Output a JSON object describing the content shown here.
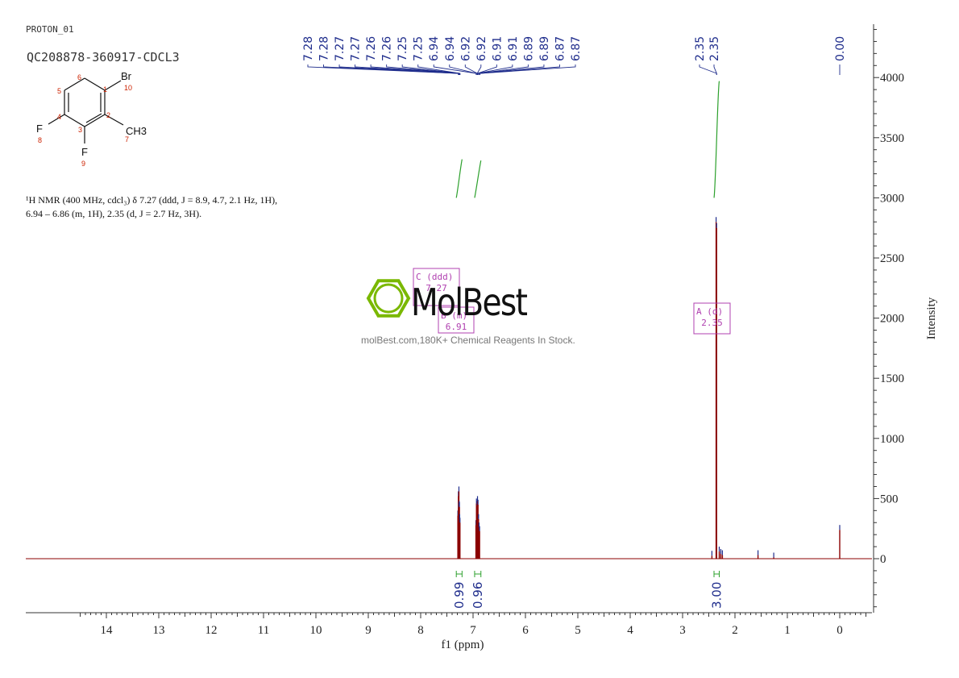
{
  "header": {
    "experiment": "PROTON_01",
    "sample": "QC208878-360917-CDCL3"
  },
  "structure": {
    "atoms": {
      "br": "Br",
      "f1": "F",
      "f2": "F",
      "ch3": "CH3"
    },
    "numbers": [
      "1",
      "2",
      "3",
      "4",
      "5",
      "6",
      "7",
      "8",
      "9",
      "10"
    ]
  },
  "nmr_text": {
    "line1": "¹H NMR (400 MHz, cdcl₃) δ 7.27 (ddd, J = 8.9, 4.7, 2.1 Hz, 1H),",
    "line2": "6.94 – 6.86 (m, 1H), 2.35 (d, J = 2.7 Hz, 3H)."
  },
  "watermark": {
    "brand": "MolBest",
    "subtitle": "molBest.com,180K+ Chemical Reagents In Stock."
  },
  "chart_data": {
    "type": "line",
    "xlabel": "f1 (ppm)",
    "ylabel": "Intensity",
    "xlim": [
      14.5,
      -0.5
    ],
    "ylim": [
      -450,
      4450
    ],
    "x_ticks": [
      "14",
      "13",
      "12",
      "11",
      "10",
      "9",
      "8",
      "7",
      "6",
      "5",
      "4",
      "3",
      "2",
      "1",
      "0"
    ],
    "y_ticks": [
      "0",
      "500",
      "1000",
      "1500",
      "2000",
      "2500",
      "3000",
      "3500",
      "4000"
    ],
    "peak_labels_group1": [
      "7.28",
      "7.28",
      "7.27",
      "7.27",
      "7.26",
      "7.26",
      "7.25",
      "7.25",
      "6.94",
      "6.94",
      "6.92",
      "6.92",
      "6.91",
      "6.91",
      "6.89",
      "6.89",
      "6.87",
      "6.87"
    ],
    "peak_labels_group1_ppm": [
      7.28,
      7.28,
      7.27,
      7.27,
      7.26,
      7.26,
      7.25,
      7.25,
      6.94,
      6.94,
      6.92,
      6.92,
      6.91,
      6.91,
      6.89,
      6.89,
      6.87,
      6.87
    ],
    "peak_labels_group2": [
      "2.35",
      "2.35"
    ],
    "peak_labels_group2_ppm": [
      2.35,
      2.35
    ],
    "peak_labels_group3": [
      "0.00"
    ],
    "peak_labels_group3_ppm": [
      0.0
    ],
    "peaks": [
      {
        "ppm": 7.29,
        "height": 360
      },
      {
        "ppm": 7.28,
        "height": 520
      },
      {
        "ppm": 7.275,
        "height": 420
      },
      {
        "ppm": 7.27,
        "height": 560
      },
      {
        "ppm": 7.265,
        "height": 440
      },
      {
        "ppm": 7.26,
        "height": 430
      },
      {
        "ppm": 7.255,
        "height": 330
      },
      {
        "ppm": 7.25,
        "height": 300
      },
      {
        "ppm": 6.945,
        "height": 280
      },
      {
        "ppm": 6.935,
        "height": 460
      },
      {
        "ppm": 6.925,
        "height": 440
      },
      {
        "ppm": 6.915,
        "height": 480
      },
      {
        "ppm": 6.905,
        "height": 450
      },
      {
        "ppm": 6.895,
        "height": 330
      },
      {
        "ppm": 6.885,
        "height": 260
      },
      {
        "ppm": 6.875,
        "height": 230
      },
      {
        "ppm": 2.36,
        "height": 2800
      },
      {
        "ppm": 2.35,
        "height": 2750
      },
      {
        "ppm": 2.3,
        "height": 60
      },
      {
        "ppm": 2.27,
        "height": 40
      },
      {
        "ppm": 2.24,
        "height": 30
      },
      {
        "ppm": 2.44,
        "height": 25
      },
      {
        "ppm": 1.56,
        "height": 30
      },
      {
        "ppm": 1.26,
        "height": 10
      },
      {
        "ppm": 0.0,
        "height": 240
      }
    ],
    "integrals": [
      {
        "from": 7.32,
        "to": 7.21,
        "value": "0.99",
        "curve_bottom": 3000,
        "curve_top": 3320
      },
      {
        "from": 6.97,
        "to": 6.85,
        "value": "0.96",
        "curve_bottom": 3000,
        "curve_top": 3310
      },
      {
        "from": 2.4,
        "to": 2.3,
        "value": "3.00",
        "curve_bottom": 3000,
        "curve_top": 3970
      }
    ],
    "multiplets": [
      {
        "label": "C (ddd)",
        "shift": "7.27"
      },
      {
        "label": "B (m)",
        "shift": "6.91"
      },
      {
        "label": "A (d)",
        "shift": "2.35"
      }
    ],
    "colors": {
      "spectrum": "#8b0000",
      "integral": "#2ca02c",
      "peak_label": "#1f2d8c",
      "multiplet_box": "#b040b0",
      "watermark": "#7ab800"
    }
  }
}
